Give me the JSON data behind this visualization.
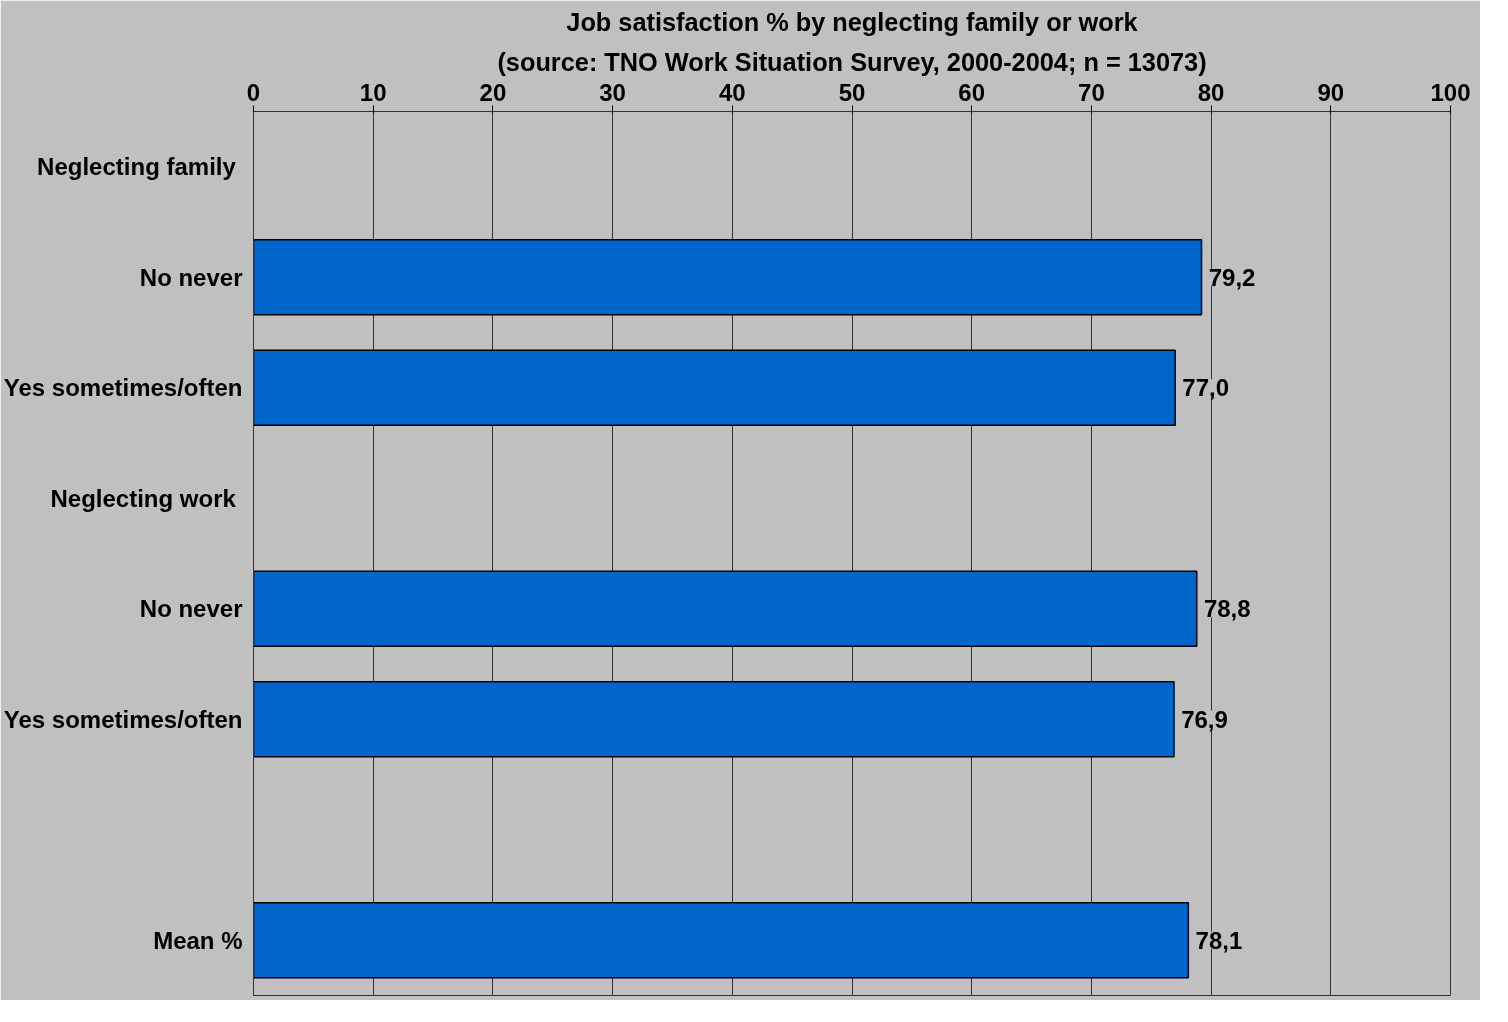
{
  "chart_data": {
    "type": "bar",
    "orientation": "horizontal",
    "title": "Job satisfaction % by neglecting family or work",
    "subtitle": "(source: TNO Work Situation Survey, 2000-2004; n = 13073)",
    "categories": [
      "Neglecting family",
      "No never",
      "Yes sometimes/often",
      "Neglecting work",
      "No never",
      "Yes sometimes/often",
      null,
      "Mean %"
    ],
    "values": [
      null,
      79.2,
      77.0,
      null,
      78.8,
      76.9,
      null,
      78.1
    ],
    "value_labels": [
      null,
      "79,2",
      "77,0",
      null,
      "78,8",
      "76,9",
      null,
      "78,1"
    ],
    "color": "#0066cc",
    "xlim": [
      0,
      100
    ],
    "xticks": [
      0,
      10,
      20,
      30,
      40,
      50,
      60,
      70,
      80,
      90,
      100
    ],
    "grid": "x"
  }
}
